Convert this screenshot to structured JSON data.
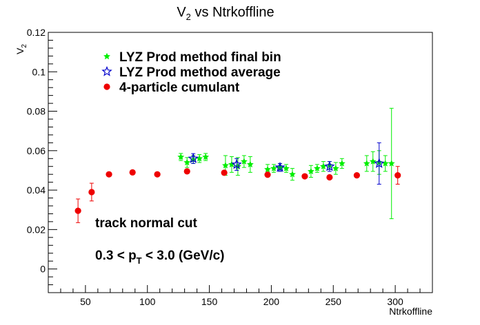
{
  "chart_data": {
    "type": "scatter",
    "title": "V",
    "title_sub": "2",
    "title_rest": " vs Ntrkoffline",
    "ylabel": "V",
    "ylabel_sub": "2",
    "xlabel": "Ntrkoffline",
    "xlim": [
      20,
      330
    ],
    "ylim": [
      -0.012,
      0.12
    ],
    "x_ticks": [
      50,
      100,
      150,
      200,
      250,
      300
    ],
    "y_ticks": [
      0,
      0.02,
      0.04,
      0.06,
      0.08,
      0.1,
      0.12
    ],
    "x_tick_labels": [
      "50",
      "100",
      "150",
      "200",
      "250",
      "300"
    ],
    "y_tick_labels": [
      "0",
      "0.02",
      "0.04",
      "0.06",
      "0.08",
      "0.1",
      "0.12"
    ],
    "grid": false,
    "legend_position": "top-left",
    "colors": {
      "final_bin": "#00ee00",
      "average": "#0000cc",
      "cumulant": "#ee0000"
    },
    "series": [
      {
        "name": "LYZ Prod method final bin",
        "marker": "star",
        "color": "#00ee00",
        "points": [
          {
            "x": 127,
            "y": 0.0568,
            "err": 0.0018
          },
          {
            "x": 132,
            "y": 0.054,
            "err": 0.0025
          },
          {
            "x": 137,
            "y": 0.0555,
            "err": 0.002
          },
          {
            "x": 142,
            "y": 0.056,
            "err": 0.002
          },
          {
            "x": 147,
            "y": 0.0568,
            "err": 0.0018
          },
          {
            "x": 163,
            "y": 0.0525,
            "err": 0.005
          },
          {
            "x": 168,
            "y": 0.053,
            "err": 0.004
          },
          {
            "x": 173,
            "y": 0.052,
            "err": 0.0045
          },
          {
            "x": 178,
            "y": 0.0545,
            "err": 0.003
          },
          {
            "x": 183,
            "y": 0.053,
            "err": 0.004
          },
          {
            "x": 197,
            "y": 0.0505,
            "err": 0.0025
          },
          {
            "x": 202,
            "y": 0.051,
            "err": 0.002
          },
          {
            "x": 207,
            "y": 0.0515,
            "err": 0.002
          },
          {
            "x": 212,
            "y": 0.051,
            "err": 0.002
          },
          {
            "x": 217,
            "y": 0.048,
            "err": 0.003
          },
          {
            "x": 232,
            "y": 0.0495,
            "err": 0.003
          },
          {
            "x": 237,
            "y": 0.051,
            "err": 0.002
          },
          {
            "x": 242,
            "y": 0.052,
            "err": 0.0025
          },
          {
            "x": 247,
            "y": 0.0525,
            "err": 0.002
          },
          {
            "x": 252,
            "y": 0.051,
            "err": 0.003
          },
          {
            "x": 257,
            "y": 0.0535,
            "err": 0.0025
          },
          {
            "x": 277,
            "y": 0.0535,
            "err": 0.004
          },
          {
            "x": 282,
            "y": 0.0545,
            "err": 0.005
          },
          {
            "x": 287,
            "y": 0.054,
            "err": 0.006
          },
          {
            "x": 292,
            "y": 0.0535,
            "err": 0.004
          },
          {
            "x": 297,
            "y": 0.0535,
            "err": 0.028
          }
        ]
      },
      {
        "name": "LYZ Prod method average",
        "marker": "open-star",
        "color": "#0000cc",
        "points": [
          {
            "x": 137,
            "y": 0.056,
            "err": 0.0025
          },
          {
            "x": 172,
            "y": 0.053,
            "err": 0.003
          },
          {
            "x": 207,
            "y": 0.0515,
            "err": 0.002
          },
          {
            "x": 247,
            "y": 0.052,
            "err": 0.0025
          },
          {
            "x": 287,
            "y": 0.0535,
            "err": 0.0105
          }
        ]
      },
      {
        "name": "4-particle cumulant",
        "marker": "circle",
        "color": "#ee0000",
        "points": [
          {
            "x": 44,
            "y": 0.0295,
            "err": 0.006
          },
          {
            "x": 55,
            "y": 0.039,
            "err": 0.0045
          },
          {
            "x": 69,
            "y": 0.048,
            "err": 0.001
          },
          {
            "x": 88,
            "y": 0.049,
            "err": 0.0008
          },
          {
            "x": 108,
            "y": 0.048,
            "err": 0.0008
          },
          {
            "x": 132,
            "y": 0.0495,
            "err": 0.0008
          },
          {
            "x": 162,
            "y": 0.0488,
            "err": 0.0008
          },
          {
            "x": 197,
            "y": 0.0478,
            "err": 0.0008
          },
          {
            "x": 227,
            "y": 0.047,
            "err": 0.0008
          },
          {
            "x": 247,
            "y": 0.0465,
            "err": 0.0008
          },
          {
            "x": 269,
            "y": 0.0475,
            "err": 0.0008
          },
          {
            "x": 302,
            "y": 0.0475,
            "err": 0.0045
          }
        ]
      }
    ],
    "annotations": {
      "cut_label": "track normal cut",
      "pt_range_before": "0.3 < p",
      "pt_range_sub": "T",
      "pt_range_after": " < 3.0 (GeV/c)"
    }
  }
}
